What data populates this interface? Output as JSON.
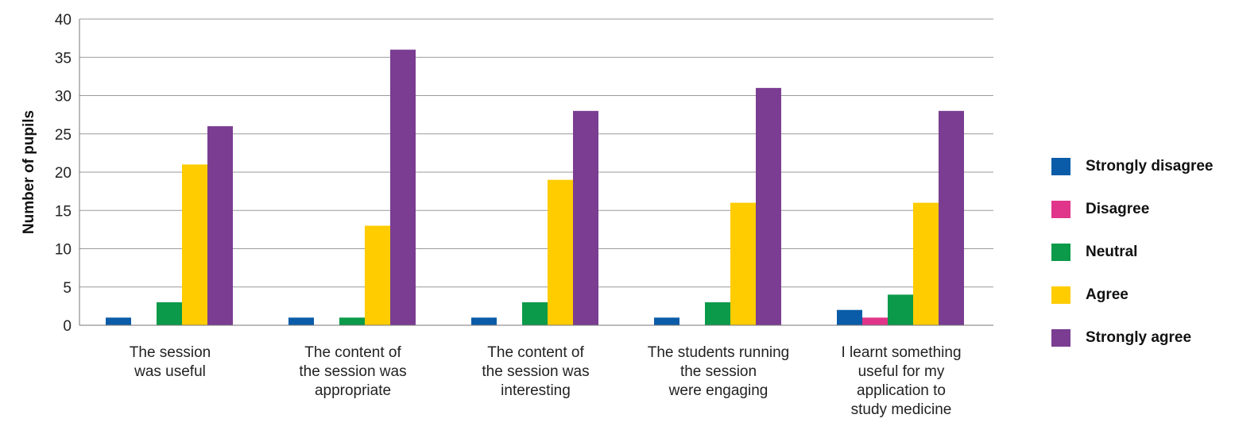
{
  "chart_data": {
    "type": "bar",
    "ylabel": "Number of pupils",
    "xlabel": "",
    "ylim": [
      0,
      40
    ],
    "yticks": [
      "0",
      "5",
      "10",
      "15",
      "20",
      "25",
      "30",
      "35",
      "40"
    ],
    "grid": true,
    "legend_position": "right",
    "categories": [
      [
        "The session",
        "was useful"
      ],
      [
        "The content of",
        "the session was",
        "appropriate"
      ],
      [
        "The content of",
        "the session was",
        "interesting"
      ],
      [
        "The students running",
        "the session",
        "were engaging"
      ],
      [
        "I learnt something",
        "useful for my",
        "application to",
        "study medicine"
      ]
    ],
    "series": [
      {
        "name": "Strongly disagree",
        "color": "#0a5ca8",
        "values": [
          1,
          1,
          1,
          1,
          2
        ]
      },
      {
        "name": "Disagree",
        "color": "#e0358a",
        "values": [
          0,
          0,
          0,
          0,
          1
        ]
      },
      {
        "name": "Neutral",
        "color": "#0a9a4a",
        "values": [
          3,
          1,
          3,
          3,
          4
        ]
      },
      {
        "name": "Agree",
        "color": "#ffcc00",
        "values": [
          21,
          13,
          19,
          16,
          16
        ]
      },
      {
        "name": "Strongly agree",
        "color": "#7a3d91",
        "values": [
          26,
          36,
          28,
          31,
          28
        ]
      }
    ]
  }
}
